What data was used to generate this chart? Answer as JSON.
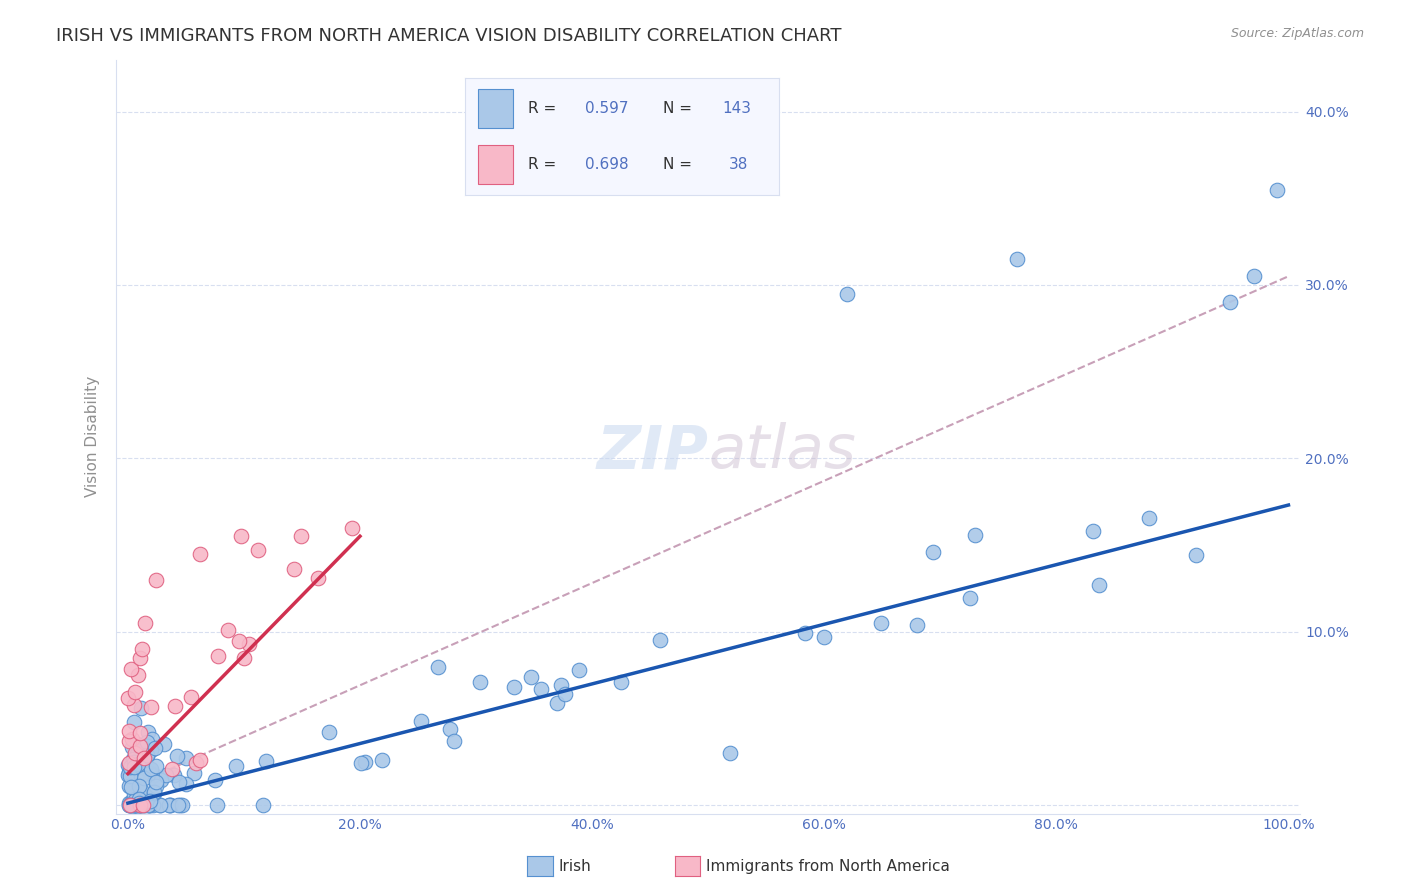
{
  "title": "IRISH VS IMMIGRANTS FROM NORTH AMERICA VISION DISABILITY CORRELATION CHART",
  "source": "Source: ZipAtlas.com",
  "ylabel": "Vision Disability",
  "xlim": [
    -0.01,
    1.01
  ],
  "ylim": [
    -0.005,
    0.43
  ],
  "xtick_vals": [
    0.0,
    0.2,
    0.4,
    0.6,
    0.8,
    1.0
  ],
  "xtick_labels": [
    "0.0%",
    "20.0%",
    "40.0%",
    "60.0%",
    "80.0%",
    "100.0%"
  ],
  "ytick_vals": [
    0.0,
    0.1,
    0.2,
    0.3,
    0.4
  ],
  "ytick_labels": [
    "",
    "10.0%",
    "20.0%",
    "30.0%",
    "40.0%"
  ],
  "irish_color": "#aac8e8",
  "irish_edge_color": "#5590d0",
  "immigrants_color": "#f8b8c8",
  "immigrants_edge_color": "#e06080",
  "irish_line_color": "#1a56b0",
  "immigrants_line_color": "#d03050",
  "dashed_line_color": "#c8a0b8",
  "background_color": "#ffffff",
  "grid_color": "#d8dff0",
  "tick_color": "#5070c0",
  "title_fontsize": 13,
  "ylabel_fontsize": 11,
  "tick_fontsize": 10,
  "source_fontsize": 9,
  "irish_R": 0.597,
  "irish_N": 143,
  "immigrants_R": 0.698,
  "immigrants_N": 38,
  "legend_irish_label": "Irish",
  "legend_immigrants_label": "Immigrants from North America",
  "legend_box_color": "#d8dff0",
  "legend_face_color": "#f5f7ff",
  "irish_line_x0": 0.0,
  "irish_line_y0": 0.001,
  "irish_line_x1": 1.0,
  "irish_line_y1": 0.173,
  "immigrants_line_x0": 0.0,
  "immigrants_line_y0": 0.018,
  "immigrants_line_x1": 0.2,
  "immigrants_line_y1": 0.155,
  "dashed_line_x0": 0.0,
  "dashed_line_y0": 0.01,
  "dashed_line_x1": 1.0,
  "dashed_line_y1": 0.305
}
